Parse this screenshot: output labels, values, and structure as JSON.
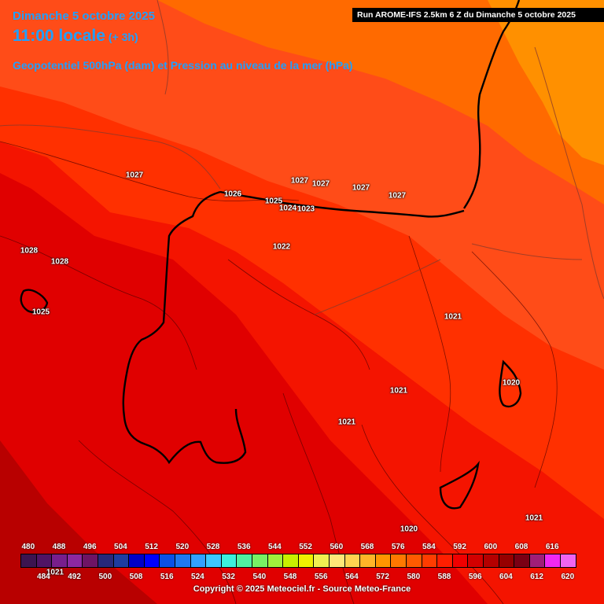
{
  "header": {
    "date": "Dimanche 5 octobre 2025",
    "time": "11:00 locale",
    "time_offset": "(+ 3h)",
    "field": "Geopotentiel 500hPa (dam) et Pression au niveau de la mer (hPa)",
    "run": "Run AROME-IFS 2.5km 6 Z du Dimanche 5 octobre 2025",
    "text_color": "#1fa0ff"
  },
  "pressure_labels": [
    "1027",
    "1026",
    "1025",
    "1024",
    "1023",
    "1027",
    "1027",
    "1027",
    "1027",
    "1022",
    "1028",
    "1028",
    "1025",
    "1021",
    "1021",
    "1021",
    "1020",
    "1020",
    "1021",
    "1021"
  ],
  "colors": {
    "field_588": "#e00000",
    "field_584": "#f41400",
    "field_580": "#ff3000",
    "field_576": "#ff4c18",
    "field_572": "#ff6a00",
    "field_568": "#ff9000",
    "field_592": "#b80000"
  },
  "legend": {
    "values": [
      "480",
      "484",
      "488",
      "492",
      "496",
      "500",
      "504",
      "508",
      "512",
      "516",
      "520",
      "524",
      "528",
      "532",
      "536",
      "540",
      "544",
      "548",
      "552",
      "556",
      "560",
      "564",
      "568",
      "572",
      "576",
      "580",
      "584",
      "588",
      "592",
      "596",
      "600",
      "604",
      "608",
      "612",
      "616",
      "620"
    ],
    "colors": [
      "#3c1450",
      "#501464",
      "#781e8c",
      "#8c28a0",
      "#6e1464",
      "#28287a",
      "#1e3ca0",
      "#0000c8",
      "#0000ff",
      "#0a50e6",
      "#1e78f0",
      "#32a0ff",
      "#3cc8ff",
      "#3cf0dc",
      "#50f0a0",
      "#78f064",
      "#a0f03c",
      "#c8f000",
      "#f0f000",
      "#f0f050",
      "#ffe678",
      "#ffd250",
      "#ffb428",
      "#ff9600",
      "#ff7800",
      "#ff5a00",
      "#ff3c00",
      "#ff1e00",
      "#f00000",
      "#d20000",
      "#b40000",
      "#960000",
      "#7a0014",
      "#a01e78",
      "#f028f0",
      "#f064f0"
    ]
  },
  "copyright": "Copyright © 2025 Meteociel.fr - Source Meteo-France"
}
